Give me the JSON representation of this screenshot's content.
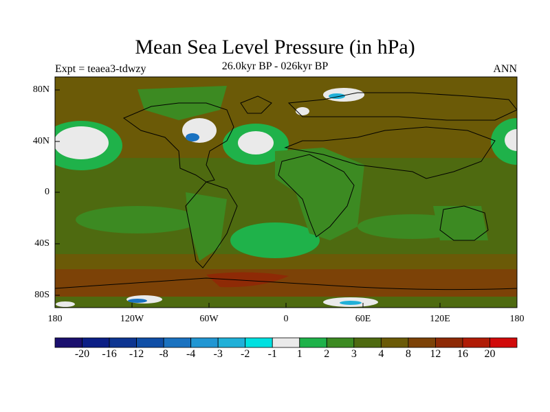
{
  "header": {
    "title": "Mean Sea Level Pressure (in hPa)",
    "experiment": "Expt = teaea3-tdwzy",
    "period": "26.0kyr BP - 026kyr BP",
    "season": "ANN"
  },
  "map": {
    "lat_ticks": [
      "80N",
      "40N",
      "0",
      "40S",
      "80S"
    ],
    "lon_ticks": [
      "180",
      "120W",
      "60W",
      "0",
      "60E",
      "120E",
      "180"
    ]
  },
  "colorbar": {
    "colors": [
      "#1a0f6e",
      "#0b1e85",
      "#0d3591",
      "#0f4ea6",
      "#1a72c0",
      "#2196d3",
      "#20b0d8",
      "#00e0e0",
      "#eaeaea",
      "#1fb24a",
      "#3c8a22",
      "#4e6a10",
      "#6b5a07",
      "#7c4207",
      "#8e2a06",
      "#b01b05",
      "#d10a0a"
    ],
    "labels": [
      "-20",
      "-16",
      "-12",
      "-8",
      "-4",
      "-3",
      "-2",
      "-1",
      "1",
      "2",
      "3",
      "4",
      "8",
      "12",
      "16",
      "20"
    ]
  },
  "palette": {
    "base": "#6b5a07",
    "green": "#1fb24a",
    "darkgreen": "#4e6a10",
    "lightgray": "#eaeaea",
    "rust": "#7c4207",
    "blue": "#1a72c0"
  }
}
